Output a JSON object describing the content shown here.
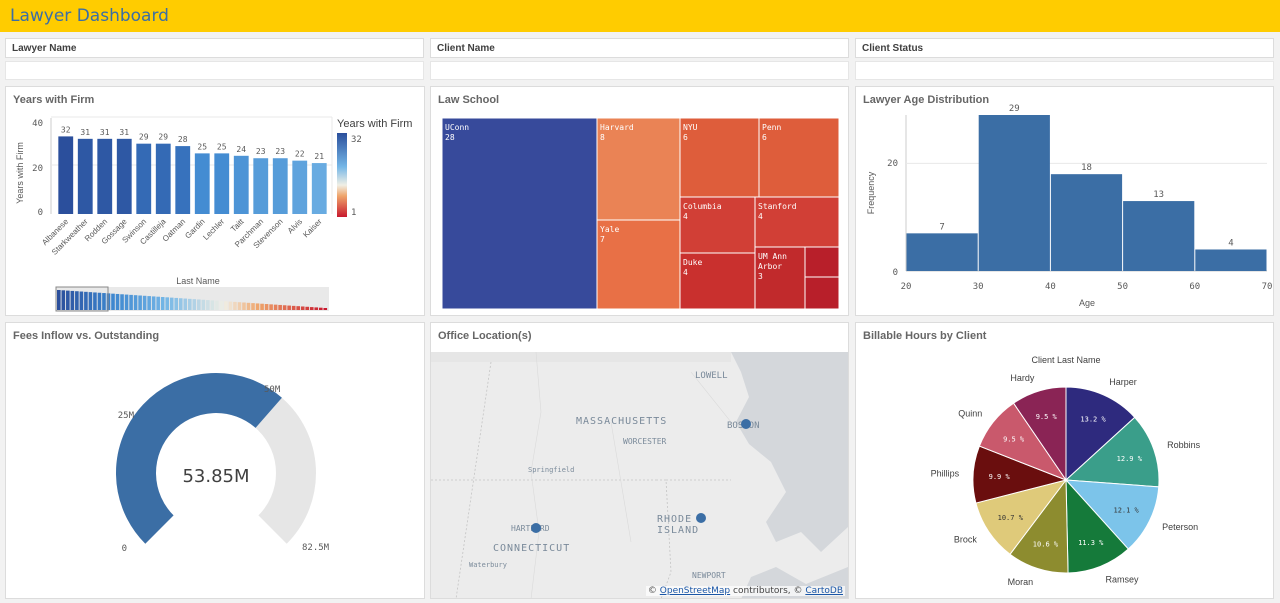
{
  "app": {
    "title": "Lawyer Dashboard"
  },
  "filters": [
    {
      "label": "Lawyer Name"
    },
    {
      "label": "Client Name"
    },
    {
      "label": "Client Status"
    }
  ],
  "years_panel": {
    "title": "Years with Firm",
    "legend_title": "Years with Firm",
    "legend_max": "32",
    "legend_min": "1",
    "scrollbar_label": "Last Name"
  },
  "law_panel": {
    "title": "Law School"
  },
  "age_panel": {
    "title": "Lawyer Age Distribution"
  },
  "fees_panel": {
    "title": "Fees Inflow vs. Outstanding",
    "value_text": "53.85M",
    "labels": {
      "zero": "0",
      "q1": "25M",
      "q2": "50M",
      "max": "82.5M"
    }
  },
  "office_panel": {
    "title": "Office Location(s)",
    "places": {
      "lowell": "LOWELL",
      "massachusetts": "MASSACHUSETTS",
      "worcester": "WORCESTER",
      "boston": "BOSTON",
      "springfield": "Springfield",
      "hartford": "HARTFORD",
      "connecticut": "CONNECTICUT",
      "rhode": "RHODE",
      "island": "ISLAND",
      "waterbury": "Waterbury",
      "newport": "NEWPORT"
    },
    "credit_prefix": "©",
    "credit_osm": "OpenStreetMap",
    "credit_mid": "contributors, ©",
    "credit_carto": "CartoDB"
  },
  "billable_panel": {
    "title": "Billable Hours by Client"
  },
  "colors": {
    "header": "#ffcc00",
    "bar_dark": "#2b4f9c",
    "histogram": "#3b6ea5",
    "gauge": "#3b6ea5"
  },
  "chart_data": [
    {
      "type": "bar",
      "title": "Years with Firm",
      "xlabel": "Last Name",
      "ylabel": "Years with Firm",
      "ylim": [
        0,
        40
      ],
      "yticks": [
        "0",
        "20",
        "40"
      ],
      "categories": [
        "Albanese",
        "Starkweather",
        "Rodden",
        "Gossage",
        "Swinson",
        "Castilleja",
        "Oatman",
        "Gardin",
        "Lechler",
        "Taitt",
        "Parchman",
        "Stevenson",
        "Alvis",
        "Kaiser"
      ],
      "values": [
        32,
        31,
        31,
        31,
        29,
        29,
        28,
        25,
        25,
        24,
        23,
        23,
        22,
        21
      ],
      "color_range": [
        1,
        32
      ]
    },
    {
      "type": "treemap",
      "title": "Law School",
      "items": [
        {
          "name": "UConn",
          "value": 28
        },
        {
          "name": "Harvard",
          "value": 8
        },
        {
          "name": "Yale",
          "value": 7
        },
        {
          "name": "NYU",
          "value": 6
        },
        {
          "name": "Penn",
          "value": 6
        },
        {
          "name": "Columbia",
          "value": 4
        },
        {
          "name": "Stanford",
          "value": 4
        },
        {
          "name": "Duke",
          "value": 4
        },
        {
          "name": "UM Ann Arbor",
          "value": 3
        }
      ]
    },
    {
      "type": "bar",
      "title": "Lawyer Age Distribution",
      "xlabel": "Age",
      "ylabel": "Frequency",
      "xticks": [
        "20",
        "30",
        "40",
        "50",
        "60",
        "70"
      ],
      "yticks": [
        "0",
        "20"
      ],
      "bins": [
        [
          20,
          30
        ],
        [
          30,
          40
        ],
        [
          40,
          50
        ],
        [
          50,
          60
        ],
        [
          60,
          70
        ]
      ],
      "values": [
        7,
        29,
        18,
        13,
        4
      ],
      "ylim": [
        0,
        29
      ]
    },
    {
      "type": "gauge",
      "title": "Fees Inflow vs. Outstanding",
      "value": 53.85,
      "min": 0,
      "max": 82.5,
      "unit": "M"
    },
    {
      "type": "pie",
      "title": "Client Last Name",
      "slices": [
        {
          "name": "Harper",
          "value": 13.2,
          "label": "13.2 %",
          "color": "#2e2a7e"
        },
        {
          "name": "Robbins",
          "value": 12.9,
          "label": "12.9 %",
          "color": "#3a9e8a"
        },
        {
          "name": "Peterson",
          "value": 12.1,
          "label": "12.1 %",
          "color": "#7cc4ea"
        },
        {
          "name": "Ramsey",
          "value": 11.3,
          "label": "11.3 %",
          "color": "#157a3a"
        },
        {
          "name": "Moran",
          "value": 10.6,
          "label": "10.6 %",
          "color": "#8d8c2f"
        },
        {
          "name": "Brock",
          "value": 10.7,
          "label": "10.7 %",
          "color": "#dfca7a"
        },
        {
          "name": "Phillips",
          "value": 9.9,
          "label": "9.9 %",
          "color": "#6a0e0e"
        },
        {
          "name": "Quinn",
          "value": 9.5,
          "label": "9.5 %",
          "color": "#c9596c"
        },
        {
          "name": "Hardy",
          "value": 9.5,
          "label": "9.5 %",
          "color": "#8a2455"
        }
      ]
    }
  ]
}
